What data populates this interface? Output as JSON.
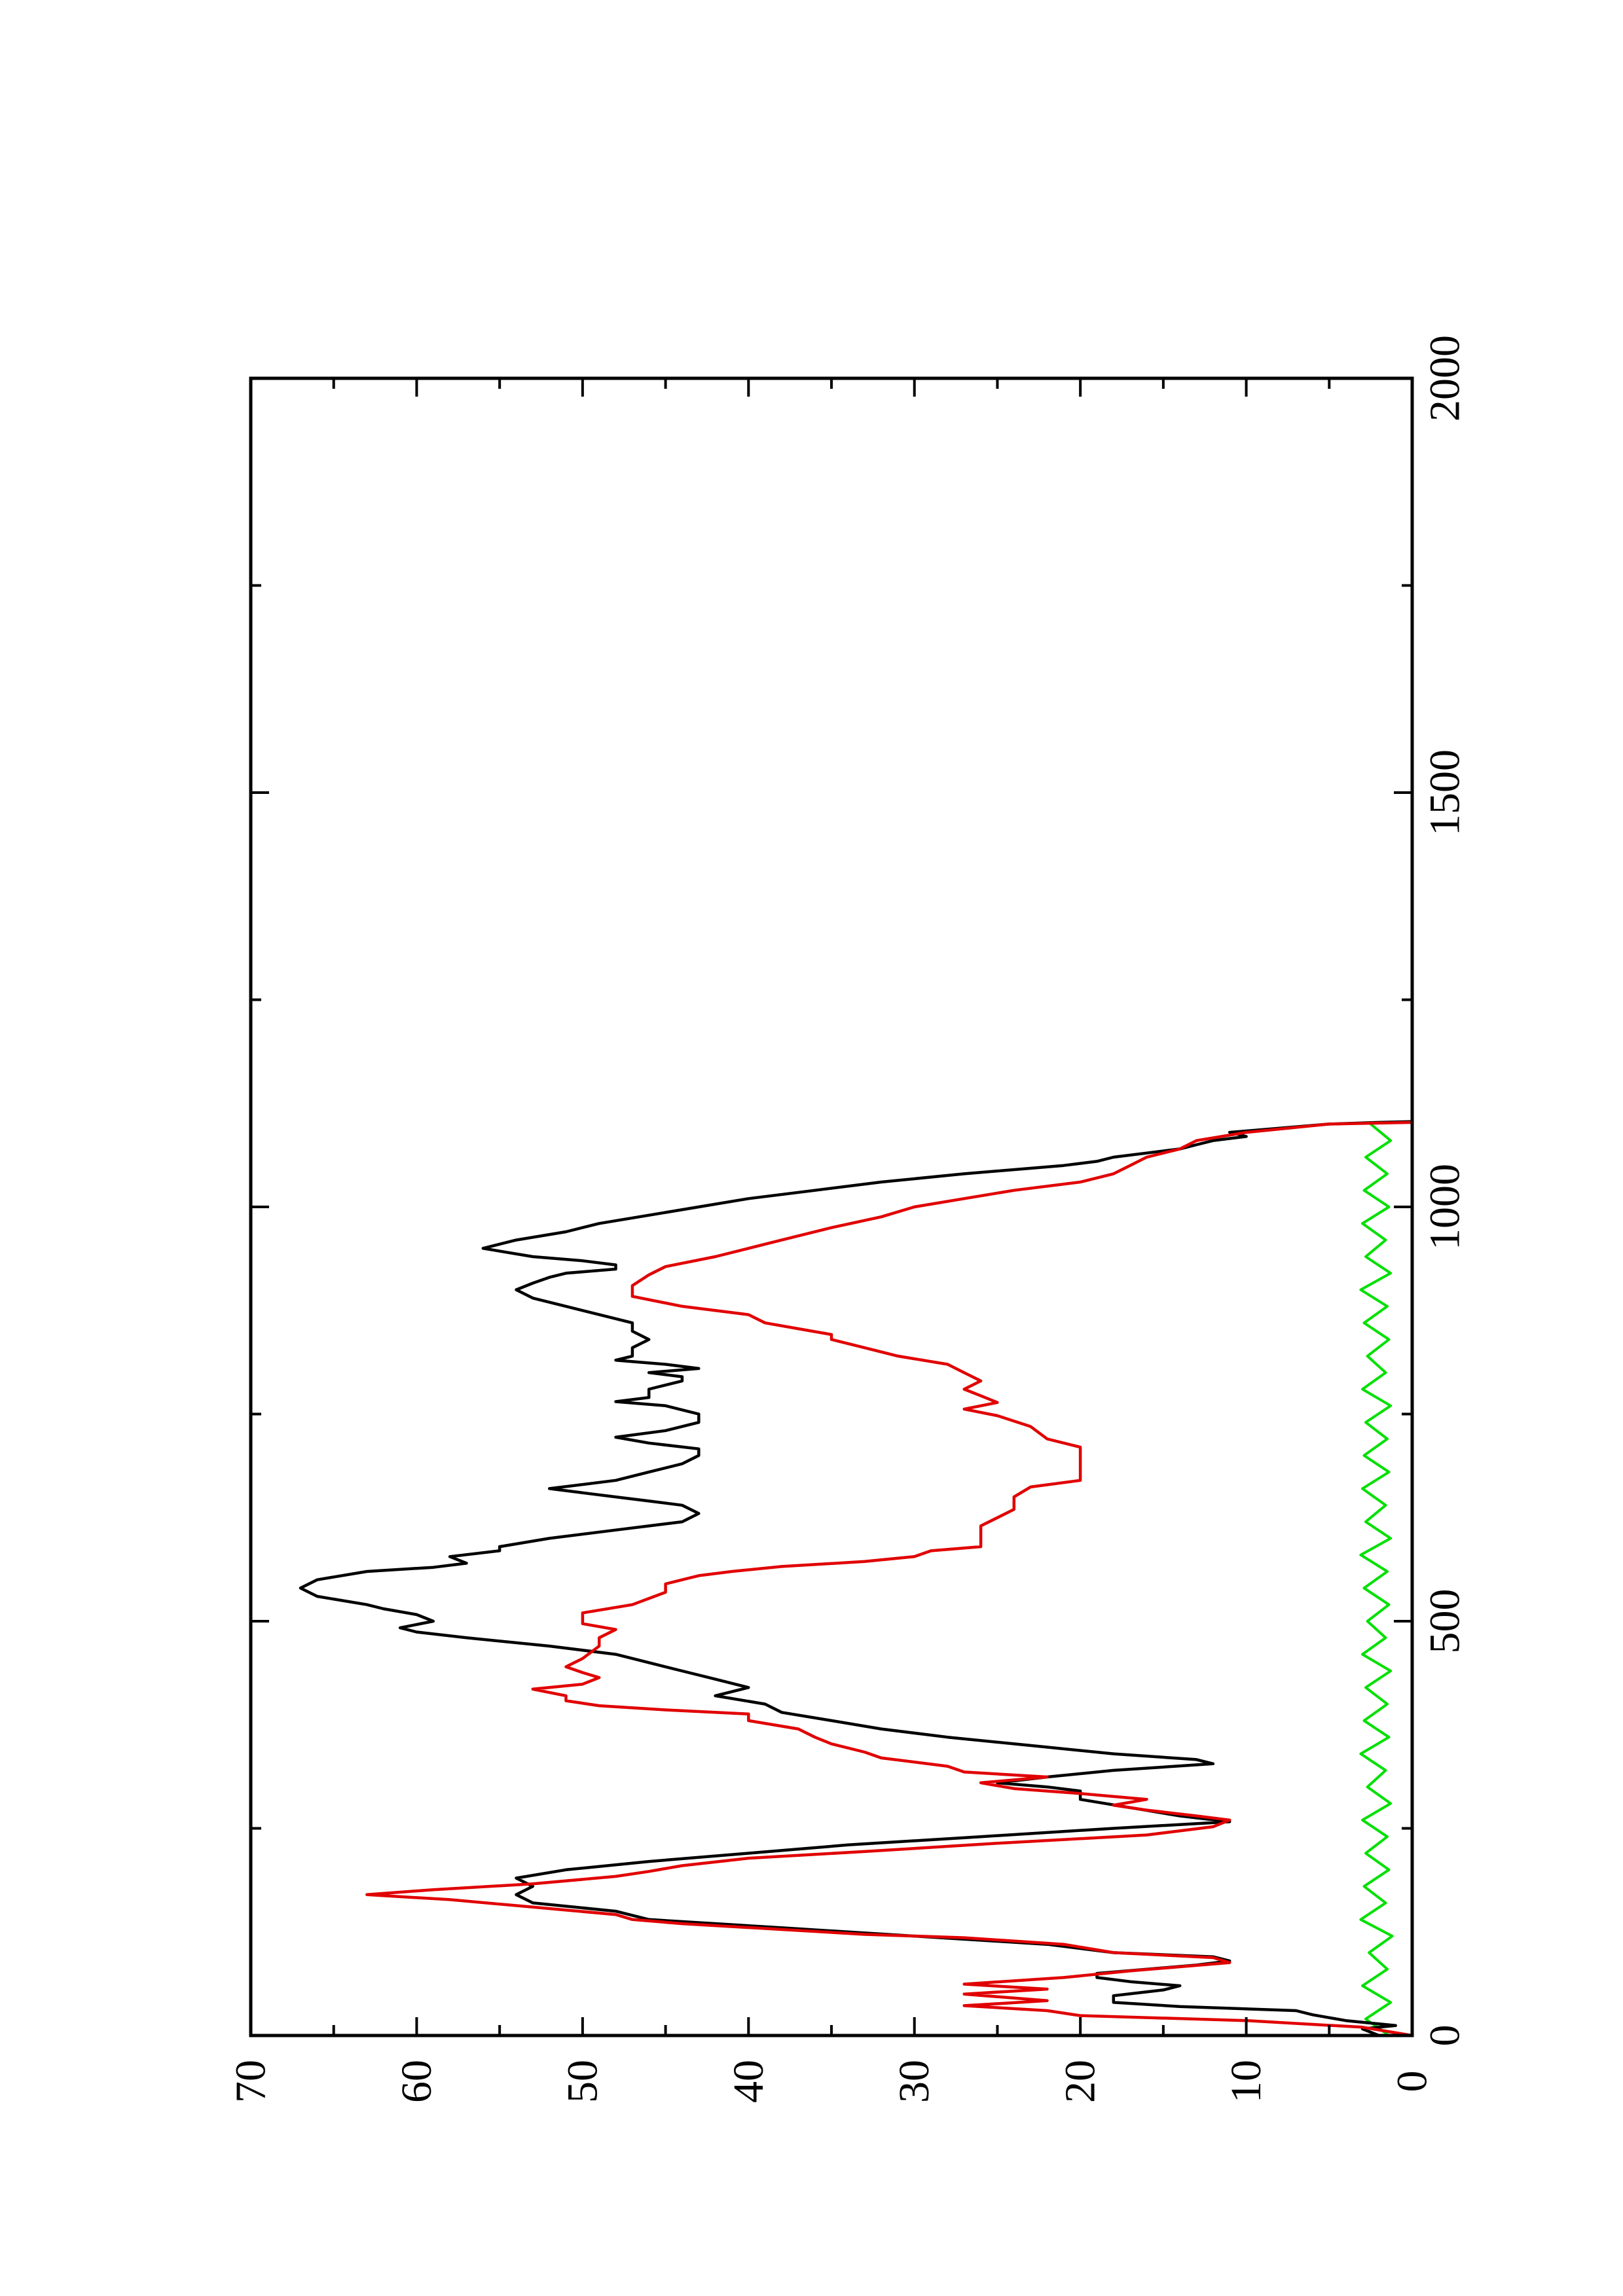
{
  "chart_data": {
    "type": "line",
    "orientation": "rotated-90-counterclockwise",
    "title": "",
    "xlabel": "",
    "ylabel": "",
    "xlim": [
      0,
      2000
    ],
    "ylim": [
      0,
      70
    ],
    "x_ticks_major": [
      0,
      500,
      1000,
      1500,
      2000
    ],
    "x_tick_labels": [
      "0",
      "500",
      "1000",
      "1500",
      "2000"
    ],
    "x_ticks_minor": [
      250,
      750,
      1250,
      1750
    ],
    "y_ticks_major": [
      0,
      10,
      20,
      30,
      40,
      50,
      60,
      70
    ],
    "y_tick_labels": [
      "0",
      "10",
      "20",
      "30",
      "40",
      "50",
      "60",
      "70"
    ],
    "y_ticks_minor": [
      5,
      15,
      25,
      35,
      45,
      55,
      65
    ],
    "grid": false,
    "legend": "none",
    "series": [
      {
        "color": "#000000",
        "style": "line",
        "points": [
          [
            0,
            2
          ],
          [
            8,
            3
          ],
          [
            12,
            1
          ],
          [
            18,
            4
          ],
          [
            25,
            6
          ],
          [
            30,
            7
          ],
          [
            35,
            14
          ],
          [
            40,
            18
          ],
          [
            48,
            18
          ],
          [
            55,
            15
          ],
          [
            60,
            14
          ],
          [
            65,
            17
          ],
          [
            70,
            19
          ],
          [
            75,
            19
          ],
          [
            80,
            16
          ],
          [
            85,
            13
          ],
          [
            90,
            11
          ],
          [
            95,
            12
          ],
          [
            100,
            18
          ],
          [
            110,
            22
          ],
          [
            120,
            30
          ],
          [
            130,
            38
          ],
          [
            140,
            46
          ],
          [
            150,
            48
          ],
          [
            160,
            53
          ],
          [
            170,
            54
          ],
          [
            180,
            53
          ],
          [
            190,
            54
          ],
          [
            200,
            51
          ],
          [
            210,
            46
          ],
          [
            220,
            40
          ],
          [
            230,
            34
          ],
          [
            240,
            26
          ],
          [
            250,
            18
          ],
          [
            258,
            11
          ],
          [
            265,
            14
          ],
          [
            275,
            17
          ],
          [
            285,
            20
          ],
          [
            295,
            20
          ],
          [
            300,
            22
          ],
          [
            305,
            25
          ],
          [
            312,
            22
          ],
          [
            320,
            18
          ],
          [
            328,
            12
          ],
          [
            333,
            13
          ],
          [
            340,
            18
          ],
          [
            350,
            23
          ],
          [
            360,
            28
          ],
          [
            370,
            32
          ],
          [
            380,
            35
          ],
          [
            390,
            38
          ],
          [
            400,
            39
          ],
          [
            410,
            42
          ],
          [
            420,
            40
          ],
          [
            430,
            42
          ],
          [
            440,
            44
          ],
          [
            450,
            46
          ],
          [
            460,
            48
          ],
          [
            470,
            52
          ],
          [
            480,
            57
          ],
          [
            487,
            60
          ],
          [
            492,
            61
          ],
          [
            500,
            59
          ],
          [
            508,
            60
          ],
          [
            515,
            62
          ],
          [
            520,
            63
          ],
          [
            530,
            66
          ],
          [
            540,
            67
          ],
          [
            550,
            66
          ],
          [
            560,
            63
          ],
          [
            565,
            59
          ],
          [
            570,
            57
          ],
          [
            578,
            58
          ],
          [
            585,
            55
          ],
          [
            590,
            55
          ],
          [
            600,
            52
          ],
          [
            610,
            48
          ],
          [
            620,
            44
          ],
          [
            630,
            43
          ],
          [
            640,
            44
          ],
          [
            645,
            46
          ],
          [
            650,
            48
          ],
          [
            655,
            50
          ],
          [
            660,
            52
          ],
          [
            670,
            48
          ],
          [
            680,
            46
          ],
          [
            690,
            44
          ],
          [
            700,
            43
          ],
          [
            708,
            43
          ],
          [
            715,
            46
          ],
          [
            722,
            48
          ],
          [
            730,
            45
          ],
          [
            740,
            43
          ],
          [
            750,
            43
          ],
          [
            760,
            45
          ],
          [
            765,
            48
          ],
          [
            770,
            46
          ],
          [
            780,
            46
          ],
          [
            790,
            44
          ],
          [
            795,
            44
          ],
          [
            800,
            46
          ],
          [
            805,
            43
          ],
          [
            810,
            45
          ],
          [
            815,
            48
          ],
          [
            820,
            47
          ],
          [
            830,
            47
          ],
          [
            840,
            46
          ],
          [
            850,
            47
          ],
          [
            860,
            47
          ],
          [
            870,
            49
          ],
          [
            880,
            51
          ],
          [
            890,
            53
          ],
          [
            900,
            54
          ],
          [
            908,
            53
          ],
          [
            915,
            52
          ],
          [
            920,
            51
          ],
          [
            925,
            48
          ],
          [
            930,
            48
          ],
          [
            935,
            50
          ],
          [
            940,
            53
          ],
          [
            950,
            56
          ],
          [
            960,
            54
          ],
          [
            970,
            51
          ],
          [
            980,
            49
          ],
          [
            990,
            46
          ],
          [
            1000,
            43
          ],
          [
            1010,
            40
          ],
          [
            1020,
            36
          ],
          [
            1030,
            32
          ],
          [
            1040,
            27
          ],
          [
            1050,
            21
          ],
          [
            1055,
            19
          ],
          [
            1060,
            18
          ],
          [
            1065,
            16
          ],
          [
            1070,
            14
          ],
          [
            1075,
            13
          ],
          [
            1080,
            12
          ],
          [
            1085,
            10
          ],
          [
            1090,
            11
          ],
          [
            1095,
            8
          ],
          [
            1100,
            5
          ],
          [
            1102,
            2
          ],
          [
            1103,
            0
          ]
        ]
      },
      {
        "color": "#e10000",
        "style": "step",
        "points": [
          [
            0,
            0
          ],
          [
            10,
            3
          ],
          [
            18,
            10
          ],
          [
            24,
            20
          ],
          [
            30,
            22
          ],
          [
            36,
            27
          ],
          [
            42,
            22
          ],
          [
            50,
            27
          ],
          [
            56,
            22
          ],
          [
            62,
            27
          ],
          [
            70,
            21
          ],
          [
            78,
            17
          ],
          [
            88,
            11
          ],
          [
            94,
            12
          ],
          [
            100,
            18
          ],
          [
            110,
            21
          ],
          [
            118,
            27
          ],
          [
            122,
            33
          ],
          [
            128,
            38
          ],
          [
            135,
            44
          ],
          [
            140,
            47
          ],
          [
            146,
            48
          ],
          [
            155,
            53
          ],
          [
            164,
            58
          ],
          [
            170,
            63
          ],
          [
            176,
            59
          ],
          [
            183,
            53
          ],
          [
            192,
            48
          ],
          [
            198,
            46
          ],
          [
            205,
            44
          ],
          [
            214,
            40
          ],
          [
            222,
            33
          ],
          [
            232,
            25
          ],
          [
            242,
            16
          ],
          [
            252,
            12
          ],
          [
            260,
            11
          ],
          [
            265,
            13
          ],
          [
            272,
            16
          ],
          [
            278,
            18
          ],
          [
            285,
            16
          ],
          [
            292,
            20
          ],
          [
            298,
            24
          ],
          [
            305,
            26
          ],
          [
            312,
            22
          ],
          [
            318,
            27
          ],
          [
            325,
            28
          ],
          [
            335,
            32
          ],
          [
            342,
            33
          ],
          [
            352,
            35
          ],
          [
            360,
            36
          ],
          [
            370,
            37
          ],
          [
            380,
            40
          ],
          [
            388,
            40
          ],
          [
            393,
            45
          ],
          [
            398,
            49
          ],
          [
            404,
            51
          ],
          [
            410,
            51
          ],
          [
            418,
            53
          ],
          [
            424,
            50
          ],
          [
            432,
            49
          ],
          [
            438,
            50
          ],
          [
            445,
            51
          ],
          [
            455,
            50
          ],
          [
            470,
            49
          ],
          [
            480,
            49
          ],
          [
            490,
            48
          ],
          [
            497,
            50
          ],
          [
            510,
            50
          ],
          [
            520,
            47
          ],
          [
            535,
            45
          ],
          [
            545,
            45
          ],
          [
            555,
            43
          ],
          [
            560,
            41
          ],
          [
            566,
            38
          ],
          [
            572,
            33
          ],
          [
            578,
            30
          ],
          [
            585,
            29
          ],
          [
            590,
            26
          ],
          [
            596,
            26
          ],
          [
            605,
            26
          ],
          [
            615,
            26
          ],
          [
            625,
            25
          ],
          [
            635,
            24
          ],
          [
            650,
            24
          ],
          [
            662,
            23
          ],
          [
            670,
            20
          ],
          [
            680,
            20
          ],
          [
            690,
            20
          ],
          [
            700,
            20
          ],
          [
            710,
            20
          ],
          [
            720,
            22
          ],
          [
            735,
            23
          ],
          [
            748,
            25
          ],
          [
            756,
            27
          ],
          [
            764,
            25
          ],
          [
            772,
            26
          ],
          [
            780,
            27
          ],
          [
            790,
            26
          ],
          [
            800,
            27
          ],
          [
            810,
            28
          ],
          [
            820,
            31
          ],
          [
            830,
            33
          ],
          [
            840,
            35
          ],
          [
            846,
            35
          ],
          [
            853,
            37
          ],
          [
            860,
            39
          ],
          [
            870,
            40
          ],
          [
            880,
            44
          ],
          [
            892,
            47
          ],
          [
            905,
            47
          ],
          [
            918,
            46
          ],
          [
            928,
            45
          ],
          [
            940,
            42
          ],
          [
            950,
            40
          ],
          [
            960,
            38
          ],
          [
            975,
            35
          ],
          [
            988,
            32
          ],
          [
            1000,
            30
          ],
          [
            1010,
            27
          ],
          [
            1020,
            24
          ],
          [
            1030,
            20
          ],
          [
            1040,
            18
          ],
          [
            1050,
            17
          ],
          [
            1060,
            16
          ],
          [
            1070,
            14
          ],
          [
            1080,
            13
          ],
          [
            1090,
            10
          ],
          [
            1100,
            5
          ],
          [
            1102,
            0
          ]
        ]
      },
      {
        "color": "#00e000",
        "style": "noise",
        "points": [
          [
            0,
            1.4
          ],
          [
            20,
            2.8
          ],
          [
            40,
            1.3
          ],
          [
            60,
            3.0
          ],
          [
            80,
            1.5
          ],
          [
            100,
            2.6
          ],
          [
            120,
            1.2
          ],
          [
            140,
            3.1
          ],
          [
            160,
            1.6
          ],
          [
            180,
            2.9
          ],
          [
            200,
            1.4
          ],
          [
            220,
            2.8
          ],
          [
            240,
            1.5
          ],
          [
            260,
            3.0
          ],
          [
            280,
            1.3
          ],
          [
            300,
            2.7
          ],
          [
            320,
            1.6
          ],
          [
            340,
            3.1
          ],
          [
            360,
            1.4
          ],
          [
            380,
            2.9
          ],
          [
            400,
            1.5
          ],
          [
            420,
            2.8
          ],
          [
            440,
            1.3
          ],
          [
            460,
            3.0
          ],
          [
            480,
            1.6
          ],
          [
            500,
            2.7
          ],
          [
            520,
            1.4
          ],
          [
            540,
            2.9
          ],
          [
            560,
            1.5
          ],
          [
            580,
            3.1
          ],
          [
            600,
            1.3
          ],
          [
            620,
            2.8
          ],
          [
            640,
            1.6
          ],
          [
            660,
            3.0
          ],
          [
            680,
            1.4
          ],
          [
            700,
            2.9
          ],
          [
            720,
            1.5
          ],
          [
            740,
            2.8
          ],
          [
            760,
            1.3
          ],
          [
            780,
            3.0
          ],
          [
            800,
            1.6
          ],
          [
            820,
            2.7
          ],
          [
            840,
            1.4
          ],
          [
            860,
            2.9
          ],
          [
            880,
            1.5
          ],
          [
            900,
            3.1
          ],
          [
            920,
            1.3
          ],
          [
            940,
            2.8
          ],
          [
            960,
            1.6
          ],
          [
            980,
            3.0
          ],
          [
            1000,
            1.4
          ],
          [
            1020,
            2.9
          ],
          [
            1040,
            1.5
          ],
          [
            1060,
            2.8
          ],
          [
            1080,
            1.3
          ],
          [
            1100,
            2.5
          ]
        ]
      }
    ]
  }
}
